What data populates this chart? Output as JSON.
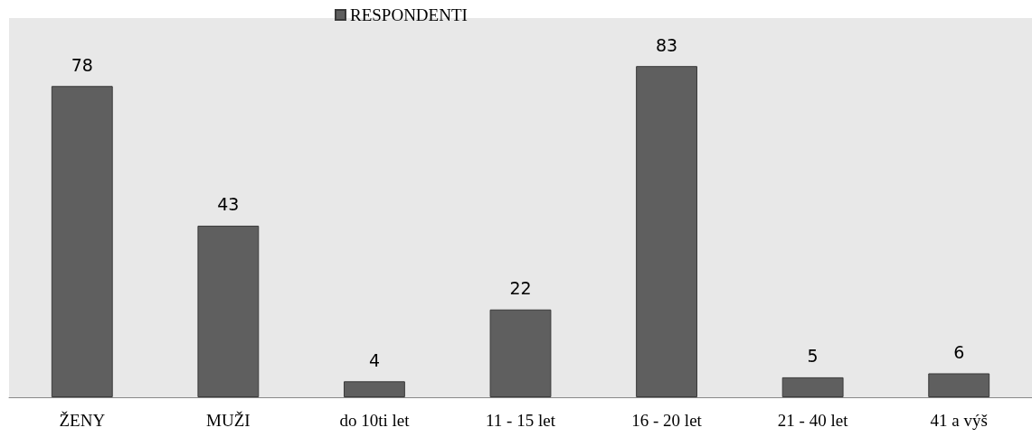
{
  "chart_data": {
    "type": "bar",
    "categories": [
      "ŽENY",
      "MUŽI",
      "do 10ti let",
      "11 - 15 let",
      "16 - 20 let",
      "21 - 40 let",
      "41 a výš"
    ],
    "series": [
      {
        "name": "RESPONDENTI",
        "color": "#5f5f5f",
        "values": [
          78,
          43,
          4,
          22,
          83,
          5,
          6
        ]
      }
    ],
    "data_labels": true,
    "legend": "top"
  }
}
